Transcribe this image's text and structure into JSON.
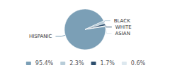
{
  "chart_data": {
    "type": "pie",
    "categories": [
      "HISPANIC",
      "BLACK",
      "WHITE",
      "ASIAN"
    ],
    "values": [
      95.4,
      2.3,
      1.7,
      0.6
    ],
    "value_labels": [
      "95.4%",
      "2.3%",
      "1.7%",
      "0.6%"
    ],
    "colors": [
      "#7b9fb6",
      "#b8cdd9",
      "#2e4f6e",
      "#dde8ef"
    ],
    "legend": "bottom"
  }
}
